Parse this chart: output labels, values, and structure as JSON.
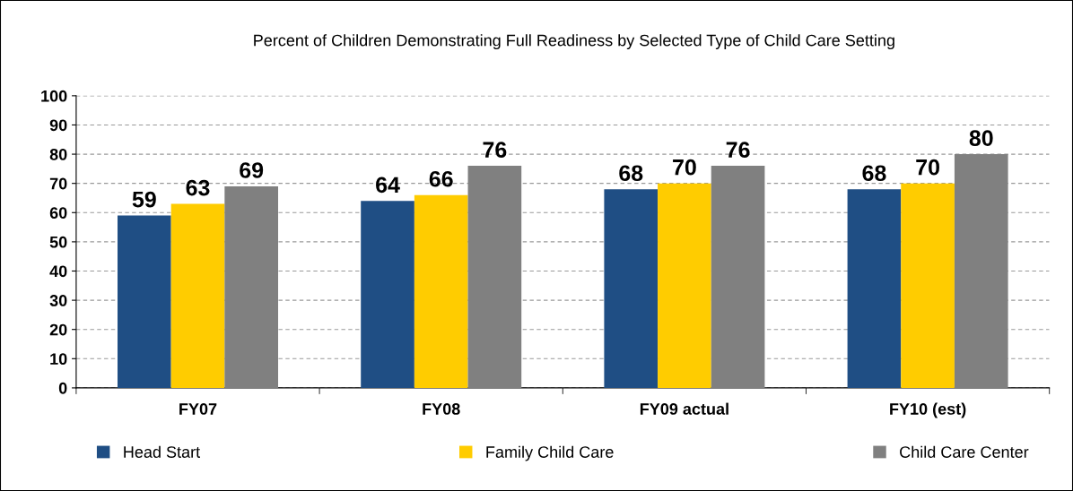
{
  "chart_data": {
    "type": "bar",
    "title": "Percent of Children Demonstrating Full Readiness by Selected Type of Child Care Setting",
    "categories": [
      "FY07",
      "FY08",
      "FY09 actual",
      "FY10 (est)"
    ],
    "series": [
      {
        "name": "Head Start",
        "color": "#1f4e84",
        "values": [
          59,
          64,
          68,
          68
        ]
      },
      {
        "name": "Family Child Care",
        "color": "#ffcc00",
        "values": [
          63,
          66,
          70,
          70
        ]
      },
      {
        "name": "Child Care Center",
        "color": "#808080",
        "values": [
          69,
          76,
          76,
          80
        ]
      }
    ],
    "ylim": [
      0,
      100
    ],
    "yticks": [
      0,
      10,
      20,
      30,
      40,
      50,
      60,
      70,
      80,
      90,
      100
    ],
    "grid": "y",
    "legend": "bottom",
    "data_labels": true
  }
}
